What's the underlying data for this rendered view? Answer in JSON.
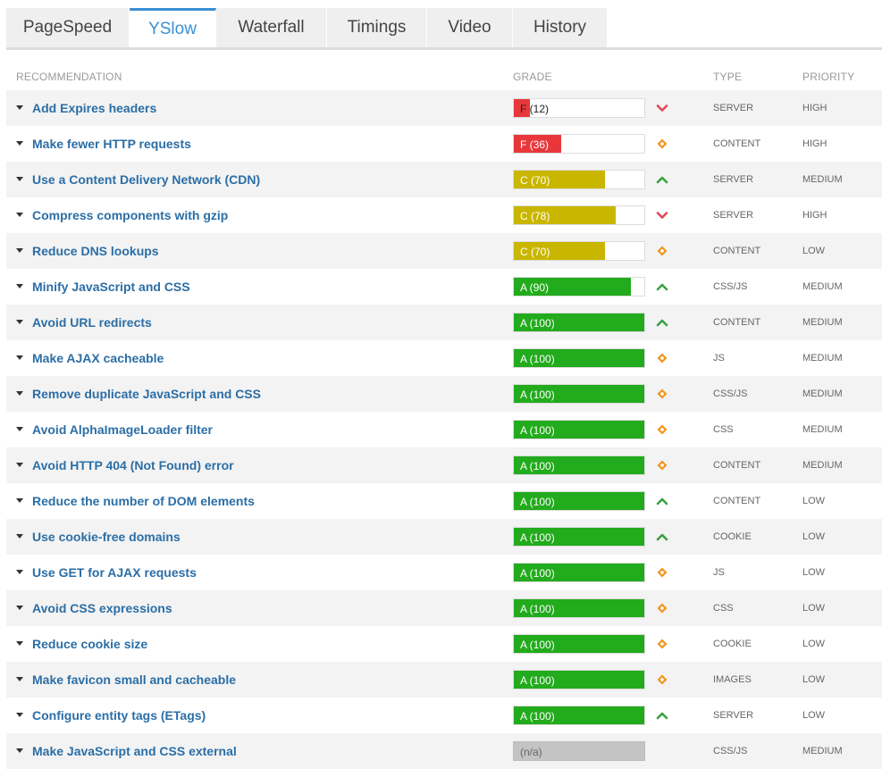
{
  "tabs": [
    {
      "label": "PageSpeed",
      "active": false
    },
    {
      "label": "YSlow",
      "active": true
    },
    {
      "label": "Waterfall",
      "active": false
    },
    {
      "label": "Timings",
      "active": false
    },
    {
      "label": "Video",
      "active": false
    },
    {
      "label": "History",
      "active": false
    }
  ],
  "headers": {
    "recommendation": "RECOMMENDATION",
    "grade": "GRADE",
    "type": "TYPE",
    "priority": "PRIORITY"
  },
  "colors": {
    "grade_F": "#e8373b",
    "grade_C": "#c9b600",
    "grade_A": "#22ab1c",
    "grade_na": "#c4c4c4",
    "trend_up": "#3aa043",
    "trend_down": "#e0475a",
    "trend_neutral": "#f0961e",
    "link": "#2b6ea6",
    "tab_active": "#3a8ed4"
  },
  "rows": [
    {
      "name": "Add Expires headers",
      "grade_letter": "F",
      "score": 12,
      "grade_label": "F (12)",
      "trend": "down-chevron-icon",
      "type": "SERVER",
      "priority": "HIGH"
    },
    {
      "name": "Make fewer HTTP requests",
      "grade_letter": "F",
      "score": 36,
      "grade_label": "F (36)",
      "trend": "diamond-icon",
      "type": "CONTENT",
      "priority": "HIGH"
    },
    {
      "name": "Use a Content Delivery Network (CDN)",
      "grade_letter": "C",
      "score": 70,
      "grade_label": "C (70)",
      "trend": "up-chevron-icon",
      "type": "SERVER",
      "priority": "MEDIUM"
    },
    {
      "name": "Compress components with gzip",
      "grade_letter": "C",
      "score": 78,
      "grade_label": "C (78)",
      "trend": "down-chevron-icon",
      "type": "SERVER",
      "priority": "HIGH"
    },
    {
      "name": "Reduce DNS lookups",
      "grade_letter": "C",
      "score": 70,
      "grade_label": "C (70)",
      "trend": "diamond-icon",
      "type": "CONTENT",
      "priority": "LOW"
    },
    {
      "name": "Minify JavaScript and CSS",
      "grade_letter": "A",
      "score": 90,
      "grade_label": "A (90)",
      "trend": "up-chevron-icon",
      "type": "CSS/JS",
      "priority": "MEDIUM"
    },
    {
      "name": "Avoid URL redirects",
      "grade_letter": "A",
      "score": 100,
      "grade_label": "A (100)",
      "trend": "up-chevron-icon",
      "type": "CONTENT",
      "priority": "MEDIUM"
    },
    {
      "name": "Make AJAX cacheable",
      "grade_letter": "A",
      "score": 100,
      "grade_label": "A (100)",
      "trend": "diamond-icon",
      "type": "JS",
      "priority": "MEDIUM"
    },
    {
      "name": "Remove duplicate JavaScript and CSS",
      "grade_letter": "A",
      "score": 100,
      "grade_label": "A (100)",
      "trend": "diamond-icon",
      "type": "CSS/JS",
      "priority": "MEDIUM"
    },
    {
      "name": "Avoid AlphaImageLoader filter",
      "grade_letter": "A",
      "score": 100,
      "grade_label": "A (100)",
      "trend": "diamond-icon",
      "type": "CSS",
      "priority": "MEDIUM"
    },
    {
      "name": "Avoid HTTP 404 (Not Found) error",
      "grade_letter": "A",
      "score": 100,
      "grade_label": "A (100)",
      "trend": "diamond-icon",
      "type": "CONTENT",
      "priority": "MEDIUM"
    },
    {
      "name": "Reduce the number of DOM elements",
      "grade_letter": "A",
      "score": 100,
      "grade_label": "A (100)",
      "trend": "up-chevron-icon",
      "type": "CONTENT",
      "priority": "LOW"
    },
    {
      "name": "Use cookie-free domains",
      "grade_letter": "A",
      "score": 100,
      "grade_label": "A (100)",
      "trend": "up-chevron-icon",
      "type": "COOKIE",
      "priority": "LOW"
    },
    {
      "name": "Use GET for AJAX requests",
      "grade_letter": "A",
      "score": 100,
      "grade_label": "A (100)",
      "trend": "diamond-icon",
      "type": "JS",
      "priority": "LOW"
    },
    {
      "name": "Avoid CSS expressions",
      "grade_letter": "A",
      "score": 100,
      "grade_label": "A (100)",
      "trend": "diamond-icon",
      "type": "CSS",
      "priority": "LOW"
    },
    {
      "name": "Reduce cookie size",
      "grade_letter": "A",
      "score": 100,
      "grade_label": "A (100)",
      "trend": "diamond-icon",
      "type": "COOKIE",
      "priority": "LOW"
    },
    {
      "name": "Make favicon small and cacheable",
      "grade_letter": "A",
      "score": 100,
      "grade_label": "A (100)",
      "trend": "diamond-icon",
      "type": "IMAGES",
      "priority": "LOW"
    },
    {
      "name": "Configure entity tags (ETags)",
      "grade_letter": "A",
      "score": 100,
      "grade_label": "A (100)",
      "trend": "up-chevron-icon",
      "type": "SERVER",
      "priority": "LOW"
    },
    {
      "name": "Make JavaScript and CSS external",
      "grade_letter": "n/a",
      "score": null,
      "grade_label": "(n/a)",
      "trend": null,
      "type": "CSS/JS",
      "priority": "MEDIUM"
    }
  ]
}
